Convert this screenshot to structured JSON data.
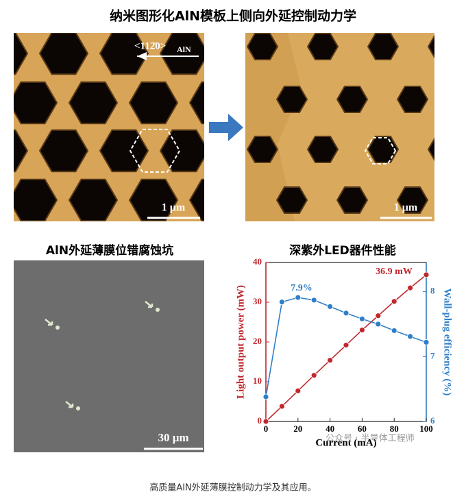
{
  "title": "纳米图形化AlN模板上侧向外延控制动力学",
  "panels": {
    "afm_direction": "<112̄0>",
    "afm_direction_sub": "AlN",
    "afm_left_scale": "1 μm",
    "afm_right_scale": "1 μm",
    "sem_title": "AlN外延薄膜位错腐蚀坑",
    "sem_scale": "30 μm",
    "chart_title": "深紫外LED器件性能"
  },
  "chart_data": {
    "type": "line",
    "x": [
      0,
      10,
      20,
      30,
      40,
      50,
      60,
      70,
      80,
      90,
      100
    ],
    "xlabel": "Current (mA)",
    "ylabel": "Light output power (mW)",
    "y2label": "Wall-plug efficiency (%)",
    "xlim": [
      0,
      100
    ],
    "xticks": [
      0,
      20,
      40,
      60,
      80,
      100
    ],
    "ylim": [
      0,
      40
    ],
    "yticks": [
      0,
      10,
      20,
      30,
      40
    ],
    "y2lim": [
      6,
      8.45
    ],
    "y2ticks": [
      6,
      7,
      8
    ],
    "series": [
      {
        "name": "Light output power",
        "color": "#c0282e",
        "values": [
          0,
          3.8,
          7.7,
          11.6,
          15.4,
          19.2,
          23,
          26.6,
          30.2,
          33.6,
          36.9
        ]
      },
      {
        "name": "Wall-plug efficiency",
        "color": "#2f7fc8",
        "axis": "y2",
        "values": [
          6.38,
          7.84,
          7.91,
          7.87,
          7.77,
          7.67,
          7.58,
          7.5,
          7.4,
          7.31,
          7.22
        ]
      }
    ],
    "annotations": [
      "36.9 mW",
      "7.9%"
    ]
  },
  "watermark": "公众号 · 半导体工程师",
  "caption": "高质量AlN外延薄膜控制动力学及其应用。"
}
